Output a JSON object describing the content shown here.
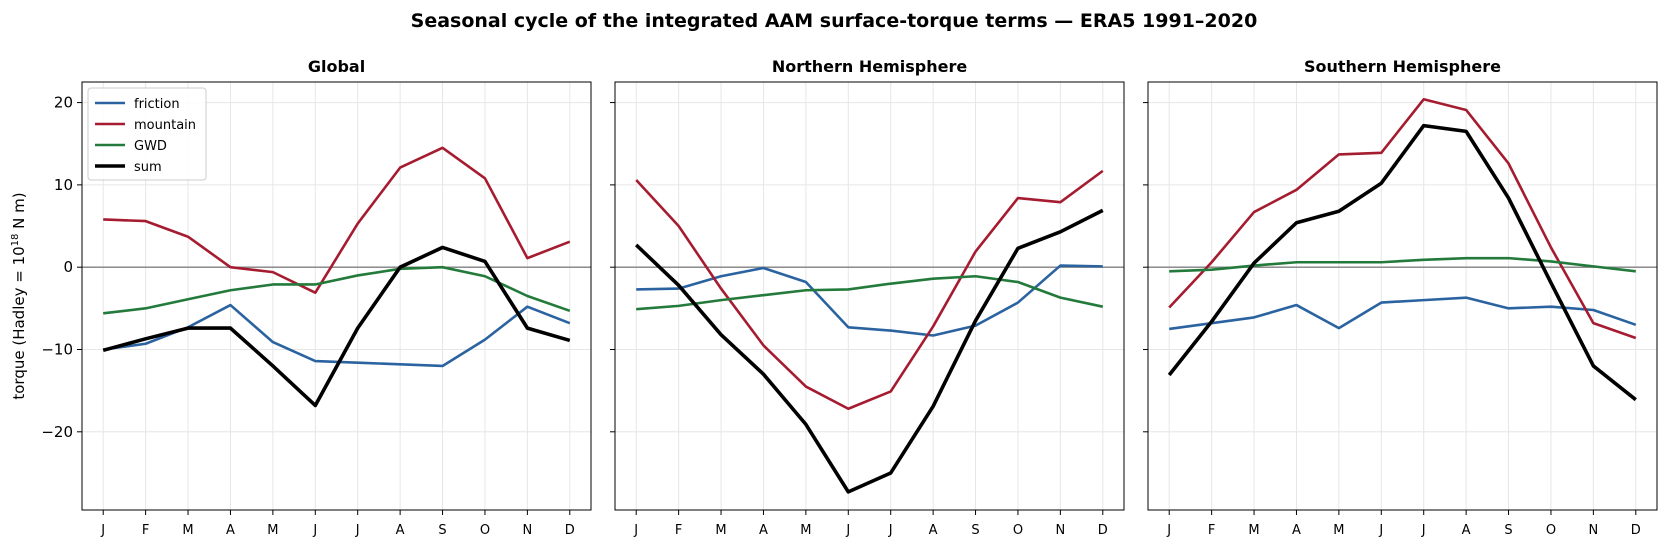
{
  "figure": {
    "title": "Seasonal cycle of the integrated AAM surface-torque terms — ERA5 1991–2020",
    "ylabel_prefix": "torque (Hadley = 10",
    "ylabel_exp": "18",
    "ylabel_suffix": " N m)"
  },
  "colors": {
    "friction": "#2b63a0",
    "mountain": "#a51c30",
    "GWD": "#237a3b",
    "sum": "#000000",
    "zero_line": "#808080",
    "grid": "#e6e6e6"
  },
  "chart_data": [
    {
      "type": "line",
      "title": "Global",
      "x": [
        "J",
        "F",
        "M",
        "A",
        "M",
        "J",
        "J",
        "A",
        "S",
        "O",
        "N",
        "D"
      ],
      "ylim": [
        -29.5,
        22.5
      ],
      "yticks": [
        20,
        10,
        0,
        -10,
        -20
      ],
      "ytick_labels": [
        "20",
        "10",
        "0",
        "−10",
        "−20"
      ],
      "grid": true,
      "legend": "upper left",
      "series": [
        {
          "name": "friction",
          "values": [
            -10.0,
            -9.3,
            -7.3,
            -4.6,
            -9.1,
            -11.4,
            -11.6,
            -11.8,
            -12.0,
            -8.8,
            -4.8,
            -6.8
          ]
        },
        {
          "name": "mountain",
          "values": [
            5.8,
            5.6,
            3.7,
            0.0,
            -0.6,
            -3.1,
            5.3,
            12.1,
            14.5,
            10.8,
            1.1,
            3.1
          ]
        },
        {
          "name": "GWD",
          "values": [
            -5.6,
            -5.0,
            -3.9,
            -2.8,
            -2.1,
            -2.1,
            -1.0,
            -0.2,
            0.0,
            -1.1,
            -3.5,
            -5.3
          ]
        },
        {
          "name": "sum",
          "values": [
            -10.1,
            -8.7,
            -7.4,
            -7.4,
            -12.0,
            -16.8,
            -7.4,
            0.0,
            2.4,
            0.7,
            -7.4,
            -8.9
          ]
        }
      ]
    },
    {
      "type": "line",
      "title": "Northern Hemisphere",
      "x": [
        "J",
        "F",
        "M",
        "A",
        "M",
        "J",
        "J",
        "A",
        "S",
        "O",
        "N",
        "D"
      ],
      "ylim": [
        -29.5,
        22.5
      ],
      "yticks": [
        20,
        10,
        0,
        -10,
        -20
      ],
      "grid": true,
      "series": [
        {
          "name": "friction",
          "values": [
            -2.7,
            -2.6,
            -1.1,
            -0.1,
            -1.8,
            -7.3,
            -7.7,
            -8.3,
            -7.1,
            -4.3,
            0.2,
            0.1
          ]
        },
        {
          "name": "mountain",
          "values": [
            10.6,
            5.0,
            -2.6,
            -9.5,
            -14.5,
            -17.2,
            -15.1,
            -7.2,
            1.9,
            8.4,
            7.9,
            11.7
          ]
        },
        {
          "name": "GWD",
          "values": [
            -5.1,
            -4.7,
            -4.0,
            -3.4,
            -2.8,
            -2.7,
            -2.0,
            -1.4,
            -1.1,
            -1.8,
            -3.7,
            -4.8
          ]
        },
        {
          "name": "sum",
          "values": [
            2.7,
            -2.2,
            -8.2,
            -13.0,
            -19.1,
            -27.3,
            -25.0,
            -16.9,
            -6.5,
            2.3,
            4.3,
            6.9
          ]
        }
      ]
    },
    {
      "type": "line",
      "title": "Southern Hemisphere",
      "x": [
        "J",
        "F",
        "M",
        "A",
        "M",
        "J",
        "J",
        "A",
        "S",
        "O",
        "N",
        "D"
      ],
      "ylim": [
        -29.5,
        22.5
      ],
      "yticks": [
        20,
        10,
        0,
        -10,
        -20
      ],
      "grid": true,
      "series": [
        {
          "name": "friction",
          "values": [
            -7.5,
            -6.8,
            -6.1,
            -4.6,
            -7.4,
            -4.3,
            -4.0,
            -3.7,
            -5.0,
            -4.8,
            -5.2,
            -7.0
          ]
        },
        {
          "name": "mountain",
          "values": [
            -4.9,
            0.6,
            6.7,
            9.4,
            13.7,
            13.9,
            20.4,
            19.1,
            12.6,
            2.4,
            -6.8,
            -8.6
          ]
        },
        {
          "name": "GWD",
          "values": [
            -0.5,
            -0.3,
            0.2,
            0.6,
            0.6,
            0.6,
            0.9,
            1.1,
            1.1,
            0.7,
            0.1,
            -0.5
          ]
        },
        {
          "name": "sum",
          "values": [
            -13.1,
            -6.6,
            0.5,
            5.4,
            6.8,
            10.2,
            17.2,
            16.5,
            8.4,
            -1.9,
            -12.0,
            -16.1
          ]
        }
      ]
    }
  ]
}
